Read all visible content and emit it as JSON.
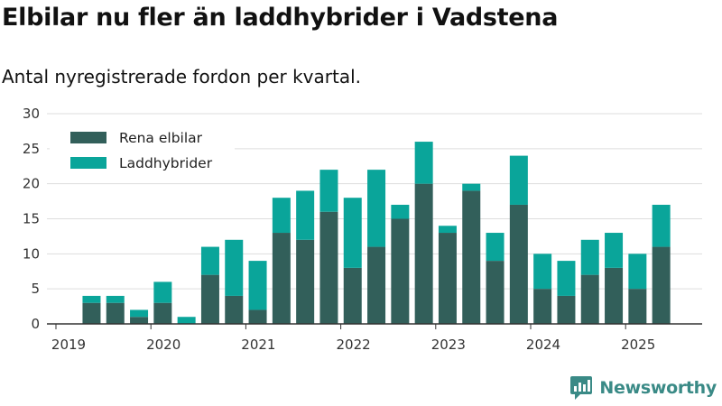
{
  "header": {
    "title": "Elbilar nu fler än laddhybrider i Vadstena",
    "subtitle": "Antal nyregistrerade fordon per kvartal."
  },
  "brand": {
    "name": "Newsworthy",
    "icon": "newsworthy-logo-icon"
  },
  "colors": {
    "rena_elbilar": "#325f5a",
    "laddhybrider": "#0aa59a",
    "grid": "#dddddd",
    "axis": "#333333"
  },
  "chart_data": {
    "type": "bar",
    "stacked": true,
    "categories": [
      "2019 Q1",
      "2019 Q2",
      "2019 Q3",
      "2019 Q4",
      "2020 Q1",
      "2020 Q2",
      "2020 Q3",
      "2020 Q4",
      "2021 Q1",
      "2021 Q2",
      "2021 Q3",
      "2021 Q4",
      "2022 Q1",
      "2022 Q2",
      "2022 Q3",
      "2022 Q4",
      "2023 Q1",
      "2023 Q2",
      "2023 Q3",
      "2023 Q4",
      "2024 Q1",
      "2024 Q2",
      "2024 Q3",
      "2024 Q4",
      "2025 Q1",
      "2025 Q2",
      "2025 Q3"
    ],
    "series": [
      {
        "name": "Rena elbilar",
        "values": [
          0,
          3,
          3,
          1,
          3,
          0,
          7,
          4,
          2,
          13,
          12,
          16,
          8,
          11,
          15,
          20,
          13,
          19,
          9,
          17,
          5,
          4,
          7,
          8,
          5,
          11,
          null
        ]
      },
      {
        "name": "Laddhybrider",
        "values": [
          0,
          1,
          1,
          1,
          3,
          1,
          4,
          8,
          7,
          5,
          7,
          6,
          10,
          11,
          2,
          6,
          1,
          1,
          4,
          7,
          5,
          5,
          5,
          5,
          5,
          6,
          null
        ]
      }
    ],
    "xticks": [
      "2019",
      "2020",
      "2021",
      "2022",
      "2023",
      "2024",
      "2025"
    ],
    "yticks": [
      0,
      5,
      10,
      15,
      20,
      25,
      30
    ],
    "ylim": [
      0,
      30
    ],
    "grid": true,
    "legend": "top-left"
  }
}
